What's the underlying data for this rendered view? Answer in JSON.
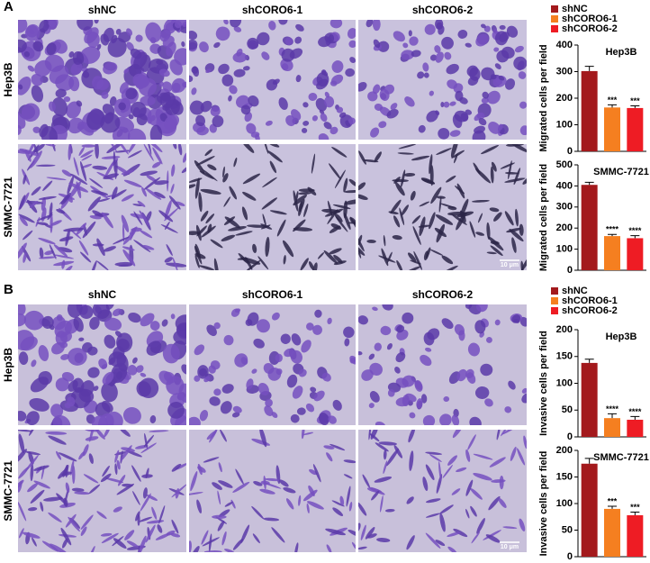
{
  "panels": [
    {
      "label": "A",
      "columns": [
        "shNC",
        "shCORO6-1",
        "shCORO6-2"
      ],
      "rows": [
        "Hep3B",
        "SMMC-7721"
      ],
      "scale_bar": "10 μm"
    },
    {
      "label": "B",
      "columns": [
        "shNC",
        "shCORO6-1",
        "shCORO6-2"
      ],
      "rows": [
        "Hep3B",
        "SMMC-7721"
      ],
      "scale_bar": "10 μm"
    }
  ],
  "chart_data": [
    {
      "type": "bar",
      "title": "Hep3B",
      "ylabel": "Migrated cells per field",
      "ylim": [
        0,
        400
      ],
      "yticks": [
        0,
        100,
        200,
        300,
        400
      ],
      "series": [
        {
          "name": "shNC",
          "color": "#a3191c",
          "values": [
            302
          ],
          "errors": [
            18
          ]
        },
        {
          "name": "shCORO6-1",
          "color": "#f57f20",
          "values": [
            165
          ],
          "errors": [
            10
          ],
          "annotation": "***"
        },
        {
          "name": "shCORO6-2",
          "color": "#ee1c24",
          "values": [
            163
          ],
          "errors": [
            8
          ],
          "annotation": "***"
        }
      ]
    },
    {
      "type": "bar",
      "title": "SMMC-7721",
      "ylabel": "Migrated cells per field",
      "ylim": [
        0,
        500
      ],
      "yticks": [
        0,
        100,
        200,
        300,
        400,
        500
      ],
      "series": [
        {
          "color": "#a3191c",
          "values": [
            405
          ],
          "errors": [
            12
          ]
        },
        {
          "color": "#f57f20",
          "values": [
            162
          ],
          "errors": [
            8
          ],
          "annotation": "****"
        },
        {
          "color": "#ee1c24",
          "values": [
            152
          ],
          "errors": [
            12
          ],
          "annotation": "****"
        }
      ]
    },
    {
      "type": "bar",
      "title": "Hep3B",
      "ylabel": "Invasive cells per field",
      "ylim": [
        0,
        200
      ],
      "yticks": [
        0,
        50,
        100,
        150,
        200
      ],
      "series": [
        {
          "name": "shNC",
          "color": "#a3191c",
          "values": [
            138
          ],
          "errors": [
            7
          ]
        },
        {
          "name": "shCORO6-1",
          "color": "#f57f20",
          "values": [
            35
          ],
          "errors": [
            8
          ],
          "annotation": "****"
        },
        {
          "name": "shCORO6-2",
          "color": "#ee1c24",
          "values": [
            32
          ],
          "errors": [
            6
          ],
          "annotation": "****"
        }
      ]
    },
    {
      "type": "bar",
      "title": "SMMC-7721",
      "ylabel": "Invasive cells per field",
      "ylim": [
        0,
        200
      ],
      "yticks": [
        0,
        50,
        100,
        150,
        200
      ],
      "series": [
        {
          "color": "#a3191c",
          "values": [
            175
          ],
          "errors": [
            10
          ]
        },
        {
          "color": "#f57f20",
          "values": [
            90
          ],
          "errors": [
            5
          ],
          "annotation": "***"
        },
        {
          "color": "#ee1c24",
          "values": [
            78
          ],
          "errors": [
            6
          ],
          "annotation": "***"
        }
      ]
    }
  ]
}
